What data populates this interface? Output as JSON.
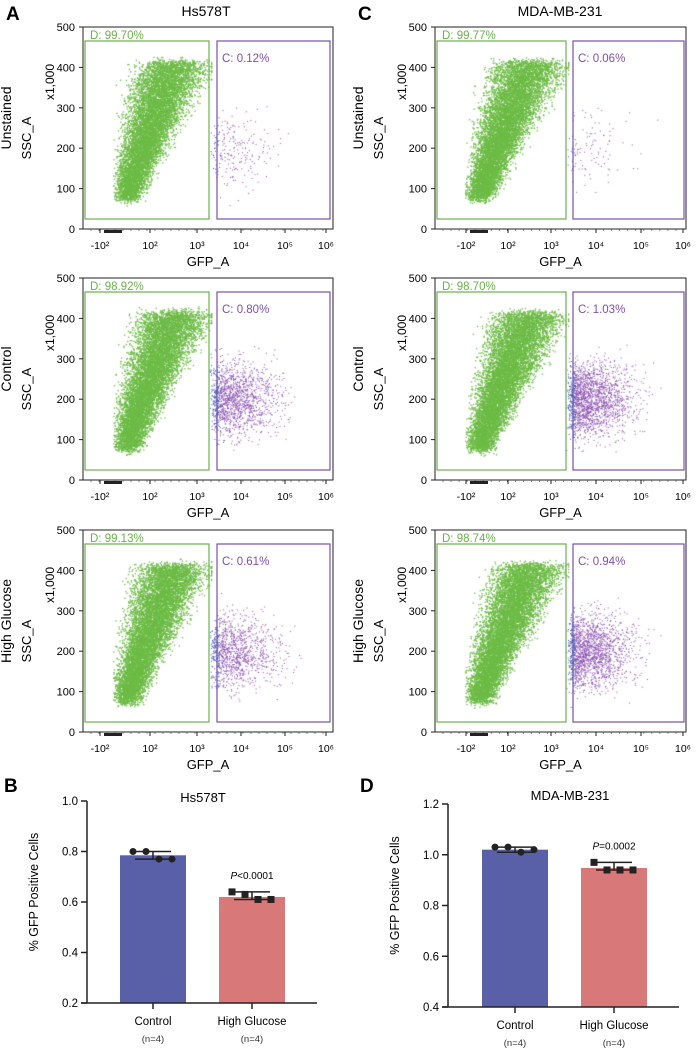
{
  "colors": {
    "gate_d": "#6ab04c",
    "gate_c": "#7d4fa8",
    "events_green": "#6cbb45",
    "events_purple": "#8a4fb0",
    "events_blue": "#3a50b0",
    "bar_control": "#5960a8",
    "bar_high_glucose": "#d97878"
  },
  "panels": {
    "A": {
      "letter": "A",
      "title": "Hs578T"
    },
    "C": {
      "letter": "C",
      "title": "MDA-MB-231"
    },
    "B": {
      "letter": "B"
    },
    "D": {
      "letter": "D"
    }
  },
  "chart_data": [
    {
      "type": "scatter",
      "panel": "A",
      "row_label": "Unstained",
      "title": "Hs578T",
      "xlabel": "GFP_A",
      "ylabel": "SSC_A",
      "yunit": "x1,000",
      "xscale": "biexponential",
      "xticks": [
        "-10²",
        "10²",
        "10³",
        "10⁴",
        "10⁵",
        "10⁶"
      ],
      "yticks": [
        "0",
        "100",
        "200",
        "300",
        "400",
        "500"
      ],
      "ylim": [
        0,
        500
      ],
      "gates": [
        {
          "name": "D",
          "label": "D: 99.70%",
          "percent": 99.7
        },
        {
          "name": "C",
          "label": "C: 0.12%",
          "percent": 0.12
        }
      ]
    },
    {
      "type": "scatter",
      "panel": "A",
      "row_label": "Control",
      "xlabel": "GFP_A",
      "ylabel": "SSC_A",
      "yunit": "x1,000",
      "xscale": "biexponential",
      "xticks": [
        "-10²",
        "10²",
        "10³",
        "10⁴",
        "10⁵",
        "10⁶"
      ],
      "yticks": [
        "0",
        "100",
        "200",
        "300",
        "400",
        "500"
      ],
      "ylim": [
        0,
        500
      ],
      "gates": [
        {
          "name": "D",
          "label": "D: 98.92%",
          "percent": 98.92
        },
        {
          "name": "C",
          "label": "C: 0.80%",
          "percent": 0.8
        }
      ]
    },
    {
      "type": "scatter",
      "panel": "A",
      "row_label": "High Glucose",
      "xlabel": "GFP_A",
      "ylabel": "SSC_A",
      "yunit": "x1,000",
      "xscale": "biexponential",
      "xticks": [
        "-10²",
        "10²",
        "10³",
        "10⁴",
        "10⁵",
        "10⁶"
      ],
      "yticks": [
        "0",
        "100",
        "200",
        "300",
        "400",
        "500"
      ],
      "ylim": [
        0,
        500
      ],
      "gates": [
        {
          "name": "D",
          "label": "D: 99.13%",
          "percent": 99.13
        },
        {
          "name": "C",
          "label": "C: 0.61%",
          "percent": 0.61
        }
      ]
    },
    {
      "type": "scatter",
      "panel": "C",
      "row_label": "Unstained",
      "title": "MDA-MB-231",
      "xlabel": "GFP_A",
      "ylabel": "SSC_A",
      "yunit": "x1,000",
      "xscale": "biexponential",
      "xticks": [
        "-10²",
        "10²",
        "10³",
        "10⁴",
        "10⁵",
        "10⁶"
      ],
      "yticks": [
        "0",
        "100",
        "200",
        "300",
        "400",
        "500"
      ],
      "ylim": [
        0,
        500
      ],
      "gates": [
        {
          "name": "D",
          "label": "D: 99.77%",
          "percent": 99.77
        },
        {
          "name": "C",
          "label": "C: 0.06%",
          "percent": 0.06
        }
      ]
    },
    {
      "type": "scatter",
      "panel": "C",
      "row_label": "Control",
      "xlabel": "GFP_A",
      "ylabel": "SSC_A",
      "yunit": "x1,000",
      "xscale": "biexponential",
      "xticks": [
        "-10²",
        "10²",
        "10³",
        "10⁴",
        "10⁵",
        "10⁶"
      ],
      "yticks": [
        "0",
        "100",
        "200",
        "300",
        "400",
        "500"
      ],
      "ylim": [
        0,
        500
      ],
      "gates": [
        {
          "name": "D",
          "label": "D: 98.70%",
          "percent": 98.7
        },
        {
          "name": "C",
          "label": "C: 1.03%",
          "percent": 1.03
        }
      ]
    },
    {
      "type": "scatter",
      "panel": "C",
      "row_label": "High Glucose",
      "xlabel": "GFP_A",
      "ylabel": "SSC_A",
      "yunit": "x1,000",
      "xscale": "biexponential",
      "xticks": [
        "-10²",
        "10²",
        "10³",
        "10⁴",
        "10⁵",
        "10⁶"
      ],
      "yticks": [
        "0",
        "100",
        "200",
        "300",
        "400",
        "500"
      ],
      "ylim": [
        0,
        500
      ],
      "gates": [
        {
          "name": "D",
          "label": "D: 98.74%",
          "percent": 98.74
        },
        {
          "name": "C",
          "label": "C: 0.94%",
          "percent": 0.94
        }
      ]
    },
    {
      "type": "bar",
      "panel": "B",
      "title": "Hs578T",
      "ylabel": "% GFP Positive Cells",
      "ylim": [
        0.2,
        1.0
      ],
      "yticks": [
        "0.2",
        "0.4",
        "0.6",
        "0.8",
        "1.0"
      ],
      "categories": [
        "Control",
        "High Glucose"
      ],
      "sublabels": [
        "(n=4)",
        "(n=4)"
      ],
      "values": [
        0.785,
        0.62
      ],
      "points": [
        [
          0.8,
          0.8,
          0.77,
          0.77
        ],
        [
          0.64,
          0.63,
          0.61,
          0.61
        ]
      ],
      "annotation": {
        "italic": "P",
        "text": "<0.0001"
      }
    },
    {
      "type": "bar",
      "panel": "D",
      "title": "MDA-MB-231",
      "ylabel": "% GFP Positive Cells",
      "ylim": [
        0.4,
        1.2
      ],
      "yticks": [
        "0.4",
        "0.6",
        "0.8",
        "1.0",
        "1.2"
      ],
      "categories": [
        "Control",
        "High Glucose"
      ],
      "sublabels": [
        "(n=4)",
        "(n=4)"
      ],
      "values": [
        1.02,
        0.948
      ],
      "points": [
        [
          1.03,
          1.03,
          1.01,
          1.02
        ],
        [
          0.97,
          0.94,
          0.94,
          0.94
        ]
      ],
      "annotation": {
        "italic": "P",
        "text": "=0.0002"
      }
    }
  ]
}
